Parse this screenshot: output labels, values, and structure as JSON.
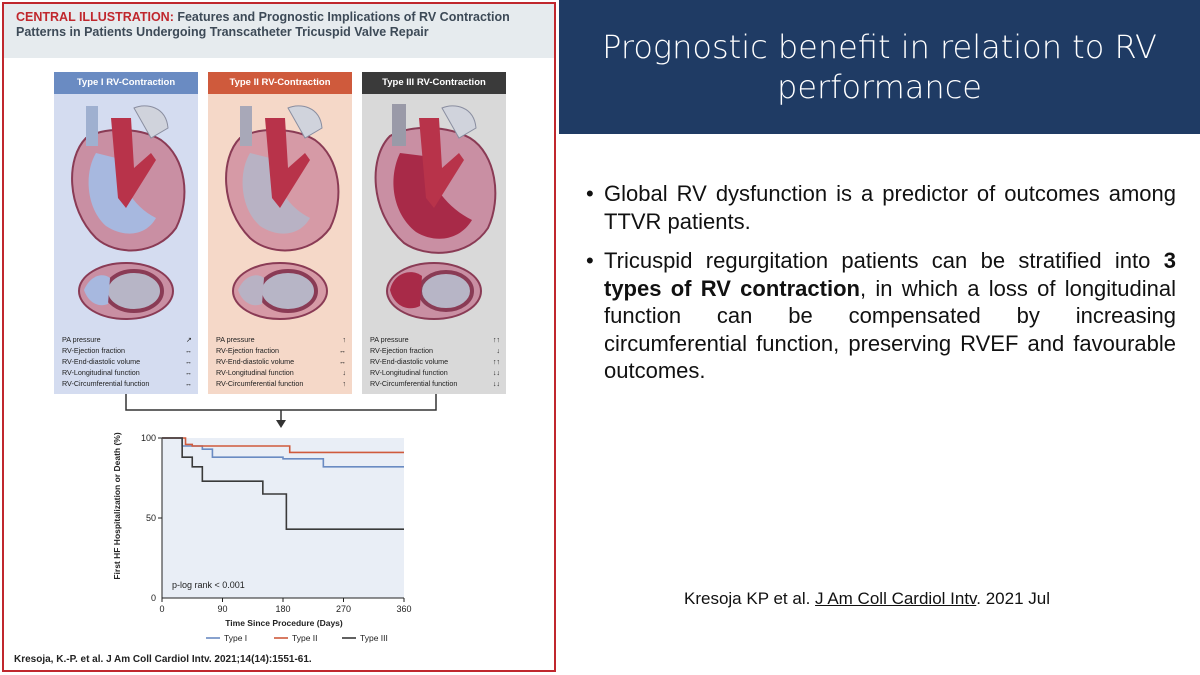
{
  "figure": {
    "title_label": "CENTRAL ILLUSTRATION:",
    "title_text": "Features and Prognostic Implications of RV Contraction Patterns in Patients Undergoing Transcatheter Tricuspid Valve Repair",
    "panels": [
      {
        "label": "Type I RV-Contraction",
        "params": [
          {
            "name": "PA pressure",
            "arrow": "↗"
          },
          {
            "name": "RV-Ejection fraction",
            "arrow": "↔"
          },
          {
            "name": "RV-End-diastolic volume",
            "arrow": "↔"
          },
          {
            "name": "RV-Longitudinal function",
            "arrow": "↔"
          },
          {
            "name": "RV-Circumferential function",
            "arrow": "↔"
          }
        ]
      },
      {
        "label": "Type II RV-Contraction",
        "params": [
          {
            "name": "PA pressure",
            "arrow": "↑"
          },
          {
            "name": "RV-Ejection fraction",
            "arrow": "↔"
          },
          {
            "name": "RV-End-diastolic volume",
            "arrow": "↔"
          },
          {
            "name": "RV-Longitudinal function",
            "arrow": "↓"
          },
          {
            "name": "RV-Circumferential function",
            "arrow": "↑"
          }
        ]
      },
      {
        "label": "Type III RV-Contraction",
        "params": [
          {
            "name": "PA pressure",
            "arrow": "↑↑"
          },
          {
            "name": "RV-Ejection fraction",
            "arrow": "↓"
          },
          {
            "name": "RV-End-diastolic volume",
            "arrow": "↑↑"
          },
          {
            "name": "RV-Longitudinal function",
            "arrow": "↓↓"
          },
          {
            "name": "RV-Circumferential function",
            "arrow": "↓↓"
          }
        ]
      }
    ],
    "citation": "Kresoja, K.-P. et al. J Am Coll Cardiol Intv. 2021;14(14):1551-61.",
    "colors": {
      "type1": "#6a8bc2",
      "type2": "#cf5a3c",
      "type3": "#3a3a3a",
      "accent": "#c0272d"
    }
  },
  "chart_data": {
    "type": "line",
    "title": "",
    "xlabel": "Time Since Procedure (Days)",
    "ylabel": "First HF Hospitalization or Death (%)",
    "xlim": [
      0,
      360
    ],
    "ylim": [
      0,
      100
    ],
    "xticks": [
      0,
      90,
      180,
      270,
      360
    ],
    "yticks": [
      50,
      100
    ],
    "annotation": "p-log rank < 0.001",
    "legend_position": "bottom",
    "series": [
      {
        "name": "Type I",
        "color": "#6a8bc2",
        "x": [
          0,
          28,
          30,
          60,
          75,
          180,
          240,
          360
        ],
        "y": [
          100,
          100,
          95,
          93,
          88,
          87,
          82,
          82
        ]
      },
      {
        "name": "Type II",
        "color": "#cf5a3c",
        "x": [
          0,
          30,
          35,
          45,
          190,
          360
        ],
        "y": [
          100,
          100,
          96,
          95,
          91,
          91
        ]
      },
      {
        "name": "Type III",
        "color": "#3a3a3a",
        "x": [
          0,
          25,
          30,
          45,
          60,
          120,
          150,
          185,
          360
        ],
        "y": [
          100,
          100,
          88,
          82,
          73,
          73,
          65,
          43,
          43
        ]
      }
    ]
  },
  "slide": {
    "title": "Prognostic benefit in relation to RV performance",
    "bullets": [
      {
        "dot": "•",
        "text": "Global RV dysfunction is a predictor of outcomes among TTVR patients."
      },
      {
        "dot": "•",
        "pre": "Tricuspid regurgitation patients can be stratified into ",
        "bold": "3 types of RV contraction",
        "post": ", in which a loss of longitudinal function can be compensated by increasing circumferential function, preserving RVEF and favourable outcomes."
      }
    ],
    "reference": {
      "authors": "Kresoja KP et al. ",
      "journal": "J Am Coll Cardiol Intv",
      "date": ". 2021 Jul"
    }
  }
}
